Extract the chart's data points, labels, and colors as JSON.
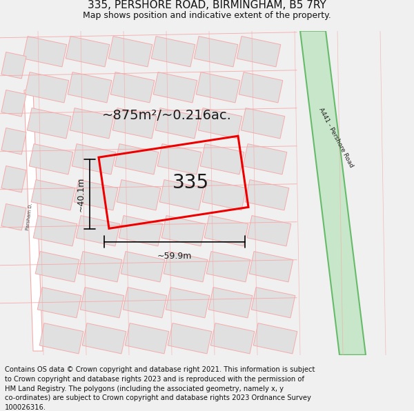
{
  "title": "335, PERSHORE ROAD, BIRMINGHAM, B5 7RY",
  "subtitle": "Map shows position and indicative extent of the property.",
  "footer": "Contains OS data © Crown copyright and database right 2021. This information is subject to Crown copyright and database rights 2023 and is reproduced with the permission of HM Land Registry. The polygons (including the associated geometry, namely x, y co-ordinates) are subject to Crown copyright and database rights 2023 Ordnance Survey 100026316.",
  "bg_color": "#f0f0f0",
  "map_bg": "#ffffff",
  "road_stripe_color": "#c8e6c9",
  "road_border_color": "#66bb6a",
  "road_label": "A441 - Pershore Road",
  "property_outline_color": "#ee0000",
  "property_label": "335",
  "area_label": "~875m²/~0.216ac.",
  "width_label": "~59.9m",
  "height_label": "~40.1m",
  "pink_line_color": "#f5aaaa",
  "grey_fill": "#e0e0e0",
  "title_fontsize": 11,
  "subtitle_fontsize": 9,
  "footer_fontsize": 7.2,
  "left_road_label": "Persh..."
}
